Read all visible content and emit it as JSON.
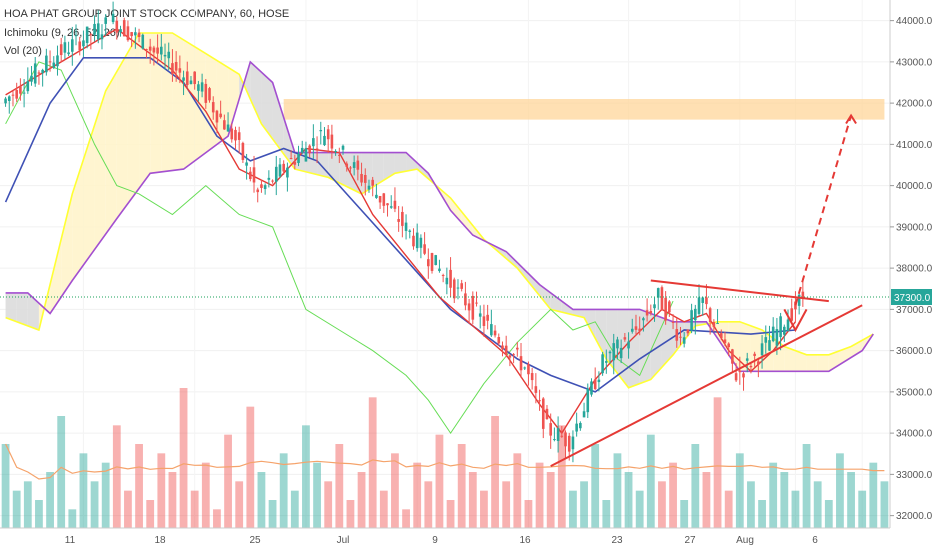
{
  "header": {
    "title": "HOA PHAT GROUP JOINT STOCK COMPANY, 60, HOSE",
    "indicators": [
      "Ichimoku (9, 26, 52, 26)",
      "Vol (20)"
    ]
  },
  "colors": {
    "up": "#26a69a",
    "down": "#ef5350",
    "tenkan": "#e53935",
    "kijun": "#3f51b5",
    "chikou": "#66dd55",
    "span_a": "#ffff33",
    "span_b": "#a34fd0",
    "cloud_bull": "#fff3c8",
    "cloud_bear": "#d9d9d9",
    "zone": "#ffd59a",
    "annotation": "#e53935",
    "price_line": "#18a058",
    "price_tag": "#26a69a",
    "vol_ma": "#f5a36b"
  },
  "chart_data": {
    "type": "candlestick",
    "title": "HOA PHAT GROUP JOINT STOCK COMPANY, 60, HOSE",
    "y_axis": {
      "ticks": [
        32000,
        33000,
        34000,
        35000,
        36000,
        37000,
        38000,
        39000,
        40000,
        41000,
        42000,
        43000,
        44000
      ],
      "tick_labels": [
        "32000.0",
        "33000.0",
        "34000.0",
        "35000.0",
        "36000.0",
        "37000.0",
        "38000.0",
        "39000.0",
        "40000.0",
        "41000.0",
        "42000.0",
        "43000.0",
        "44000.0"
      ],
      "range": [
        31700,
        44500
      ]
    },
    "x_axis": {
      "labels": [
        "11",
        "18",
        "25",
        "Jul",
        "9",
        "16",
        "23",
        "27",
        "Aug",
        "6"
      ]
    },
    "current_price": 37300,
    "current_price_label": "37300.0",
    "price_path": [
      [
        0,
        42000
      ],
      [
        5,
        43200
      ],
      [
        10,
        44000
      ],
      [
        15,
        43000
      ],
      [
        18,
        42300
      ],
      [
        21,
        41100
      ],
      [
        23,
        39800
      ],
      [
        26,
        40600
      ],
      [
        29,
        41300
      ],
      [
        32,
        40300
      ],
      [
        35,
        39400
      ],
      [
        38,
        38400
      ],
      [
        41,
        37400
      ],
      [
        44,
        36500
      ],
      [
        47,
        35600
      ],
      [
        49,
        34100
      ],
      [
        51,
        33800
      ],
      [
        54,
        35700
      ],
      [
        57,
        36500
      ],
      [
        59,
        37300
      ],
      [
        61,
        36300
      ],
      [
        63,
        37200
      ],
      [
        65,
        36100
      ],
      [
        66,
        35400
      ],
      [
        68,
        35900
      ],
      [
        70,
        36600
      ],
      [
        72,
        37300
      ]
    ],
    "ichimoku": {
      "tenkan": [
        [
          0,
          42200
        ],
        [
          5,
          43000
        ],
        [
          10,
          43800
        ],
        [
          15,
          42800
        ],
        [
          18,
          41800
        ],
        [
          21,
          40400
        ],
        [
          24,
          40000
        ],
        [
          27,
          40900
        ],
        [
          30,
          40800
        ],
        [
          33,
          39300
        ],
        [
          36,
          38300
        ],
        [
          39,
          37300
        ],
        [
          42,
          36600
        ],
        [
          45,
          35900
        ],
        [
          48,
          34700
        ],
        [
          50,
          34000
        ],
        [
          53,
          35300
        ],
        [
          56,
          36200
        ],
        [
          59,
          37000
        ],
        [
          61,
          36700
        ],
        [
          63,
          36900
        ],
        [
          65,
          36000
        ],
        [
          67,
          35500
        ],
        [
          69,
          36000
        ],
        [
          71,
          36700
        ]
      ],
      "kijun": [
        [
          0,
          39600
        ],
        [
          4,
          42000
        ],
        [
          7,
          43100
        ],
        [
          13,
          43100
        ],
        [
          16,
          42500
        ],
        [
          19,
          41200
        ],
        [
          22,
          40600
        ],
        [
          25,
          40900
        ],
        [
          28,
          40600
        ],
        [
          31,
          39700
        ],
        [
          34,
          38800
        ],
        [
          37,
          37900
        ],
        [
          40,
          37000
        ],
        [
          43,
          36400
        ],
        [
          46,
          35800
        ],
        [
          49,
          35400
        ],
        [
          53,
          35000
        ],
        [
          57,
          35800
        ],
        [
          61,
          36500
        ],
        [
          67,
          36400
        ],
        [
          71,
          36500
        ]
      ],
      "chikou": [
        [
          0,
          41500
        ],
        [
          3,
          43000
        ],
        [
          5,
          42800
        ],
        [
          8,
          41000
        ],
        [
          10,
          40000
        ],
        [
          12,
          39800
        ],
        [
          15,
          39300
        ],
        [
          18,
          40000
        ],
        [
          21,
          39300
        ],
        [
          24,
          39000
        ],
        [
          27,
          37000
        ],
        [
          30,
          36500
        ],
        [
          33,
          36000
        ],
        [
          36,
          35400
        ],
        [
          38,
          34800
        ],
        [
          40,
          34000
        ],
        [
          43,
          35200
        ],
        [
          46,
          36200
        ],
        [
          49,
          37000
        ],
        [
          51,
          36500
        ],
        [
          53,
          36700
        ],
        [
          55,
          35800
        ],
        [
          57,
          35400
        ],
        [
          58,
          36000
        ],
        [
          60,
          37200
        ]
      ],
      "span_a": [
        [
          0,
          36800
        ],
        [
          3,
          36500
        ],
        [
          6,
          39800
        ],
        [
          9,
          42300
        ],
        [
          12,
          43700
        ],
        [
          15,
          43700
        ],
        [
          18,
          43200
        ],
        [
          21,
          42700
        ],
        [
          23,
          41500
        ],
        [
          26,
          40400
        ],
        [
          29,
          40200
        ],
        [
          32,
          39800
        ],
        [
          35,
          40300
        ],
        [
          37,
          40400
        ],
        [
          40,
          39700
        ],
        [
          43,
          38700
        ],
        [
          46,
          38000
        ],
        [
          49,
          37000
        ],
        [
          52,
          36800
        ],
        [
          54,
          35800
        ],
        [
          56,
          35100
        ],
        [
          58,
          35300
        ],
        [
          60,
          35900
        ],
        [
          62,
          36600
        ],
        [
          64,
          36700
        ],
        [
          66,
          36700
        ],
        [
          68,
          36500
        ],
        [
          70,
          36100
        ],
        [
          72,
          35900
        ],
        [
          74,
          35900
        ],
        [
          76,
          36100
        ],
        [
          78,
          36400
        ]
      ],
      "span_b": [
        [
          0,
          37400
        ],
        [
          2,
          37400
        ],
        [
          4,
          36900
        ],
        [
          6,
          37700
        ],
        [
          10,
          39200
        ],
        [
          13,
          40300
        ],
        [
          16,
          40400
        ],
        [
          20,
          41200
        ],
        [
          22,
          43000
        ],
        [
          24,
          42500
        ],
        [
          26,
          40800
        ],
        [
          29,
          40800
        ],
        [
          33,
          40800
        ],
        [
          36,
          40800
        ],
        [
          38,
          40300
        ],
        [
          40,
          39400
        ],
        [
          42,
          38800
        ],
        [
          45,
          38400
        ],
        [
          48,
          37600
        ],
        [
          51,
          37000
        ],
        [
          54,
          37000
        ],
        [
          57,
          37000
        ],
        [
          60,
          36700
        ],
        [
          63,
          36700
        ],
        [
          66,
          35500
        ],
        [
          70,
          35500
        ],
        [
          74,
          35500
        ],
        [
          77,
          36000
        ],
        [
          78,
          36400
        ]
      ]
    },
    "volume": [
      9,
      4,
      5,
      3,
      6,
      12,
      2,
      8,
      5,
      7,
      11,
      4,
      9,
      3,
      8,
      6,
      15,
      4,
      7,
      2,
      10,
      5,
      13,
      6,
      3,
      8,
      4,
      11,
      7,
      5,
      9,
      3,
      6,
      14,
      4,
      8,
      2,
      7,
      5,
      10,
      3,
      9,
      6,
      4,
      12,
      5,
      8,
      3,
      7,
      6,
      11,
      4,
      5,
      9,
      3,
      8,
      6,
      4,
      10,
      5,
      7,
      3,
      9,
      6,
      14,
      4,
      8,
      5,
      3,
      7,
      6,
      4,
      9,
      5,
      3,
      8,
      6,
      4,
      7,
      5
    ],
    "annotations": {
      "resistance_zone": [
        41600,
        42100
      ],
      "triangle_top": [
        [
          58,
          37700
        ],
        [
          74,
          37200
        ]
      ],
      "triangle_bottom": [
        [
          49,
          33200
        ],
        [
          77,
          37100
        ]
      ],
      "target_arrow": [
        [
          71,
          37100
        ],
        [
          76,
          41700
        ]
      ]
    }
  }
}
